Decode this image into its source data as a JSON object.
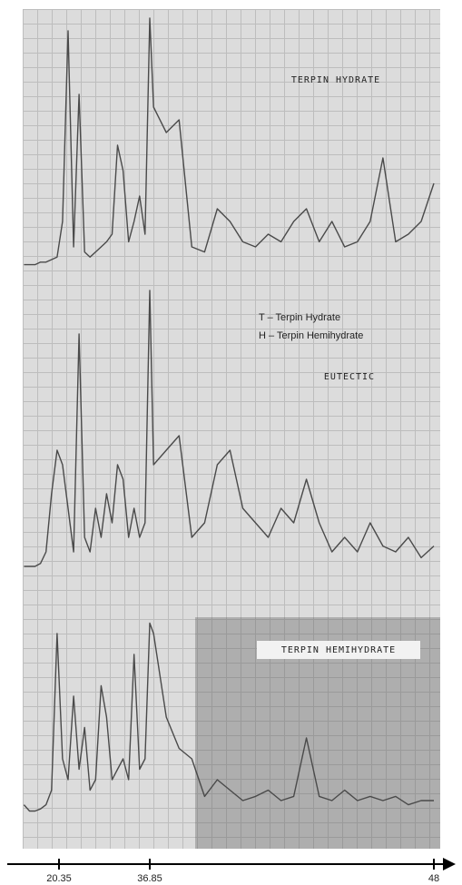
{
  "chart_data": {
    "type": "line",
    "x": [
      14,
      15,
      16,
      17,
      18,
      19,
      20,
      21,
      22,
      23,
      24,
      25,
      26,
      27,
      28,
      29,
      30,
      31,
      32,
      33,
      34,
      35,
      36,
      36.85,
      37,
      37.5,
      38,
      38.5,
      39,
      39.5,
      40,
      40.5,
      41,
      41.5,
      42,
      42.5,
      43,
      43.5,
      44,
      44.5,
      45,
      45.5,
      46,
      46.5,
      47,
      47.5,
      48
    ],
    "series": [
      {
        "name": "TERPIN HYDRATE",
        "color": "#4a4a4a",
        "values": [
          3,
          3,
          3,
          4,
          4,
          5,
          6,
          20,
          95,
          10,
          70,
          8,
          6,
          8,
          10,
          12,
          15,
          50,
          40,
          12,
          20,
          30,
          15,
          100,
          65,
          55,
          60,
          10,
          8,
          25,
          20,
          12,
          10,
          15,
          12,
          20,
          25,
          12,
          20,
          10,
          12,
          20,
          45,
          12,
          15,
          20,
          35
        ]
      },
      {
        "name": "EUTECTIC",
        "color": "#4a4a4a",
        "values": [
          5,
          5,
          5,
          6,
          10,
          30,
          45,
          40,
          25,
          10,
          85,
          15,
          10,
          25,
          15,
          30,
          20,
          40,
          35,
          15,
          25,
          15,
          20,
          100,
          40,
          45,
          50,
          15,
          20,
          40,
          45,
          25,
          20,
          15,
          25,
          20,
          35,
          20,
          10,
          15,
          10,
          20,
          12,
          10,
          15,
          8,
          12
        ]
      },
      {
        "name": "TERPIN HEMIHYDRATE",
        "color": "#4a4a4a",
        "values": [
          8,
          5,
          5,
          6,
          8,
          15,
          90,
          30,
          20,
          60,
          25,
          45,
          15,
          20,
          65,
          50,
          20,
          25,
          30,
          20,
          80,
          25,
          30,
          95,
          90,
          50,
          35,
          30,
          12,
          20,
          15,
          10,
          12,
          15,
          10,
          12,
          40,
          12,
          10,
          15,
          10,
          12,
          10,
          12,
          8,
          10,
          10
        ]
      }
    ],
    "annotations": [
      "T – Terpin Hydrate",
      "H – Terpin Hemihydrate"
    ],
    "xlim": [
      11.3,
      48.6
    ],
    "xticks": [
      20.35,
      36.85,
      48
    ]
  }
}
